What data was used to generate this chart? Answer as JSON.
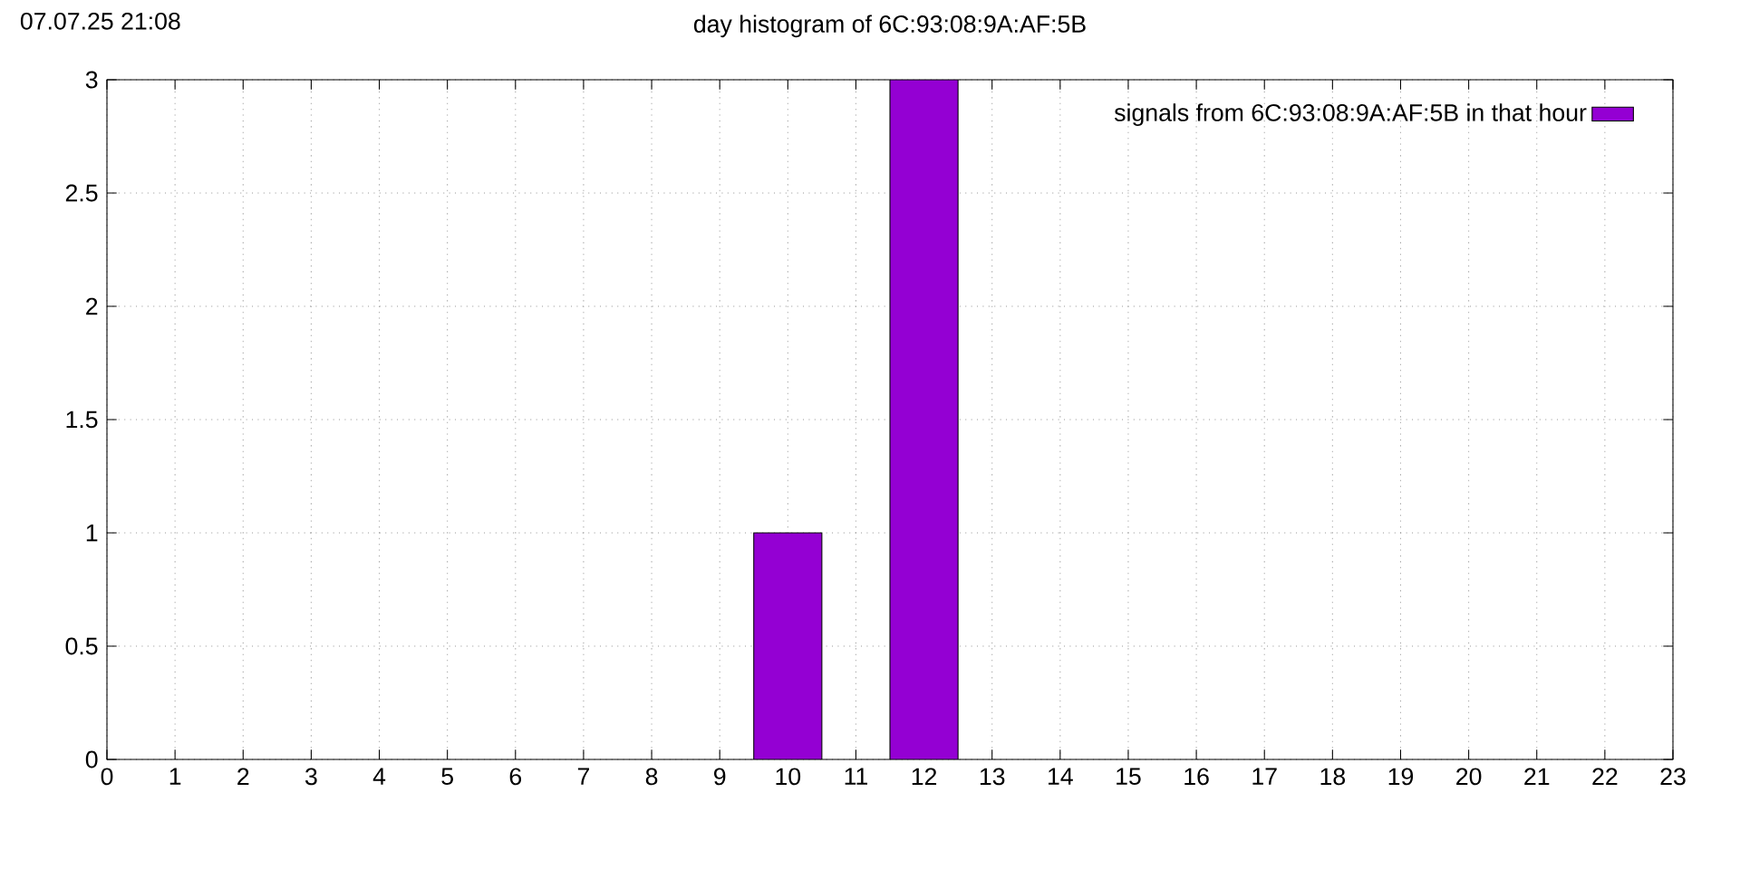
{
  "chart_data": {
    "type": "bar",
    "title": "day histogram of 6C:93:08:9A:AF:5B",
    "annotations": [
      "07.07.25 21:08"
    ],
    "x": [
      10,
      12
    ],
    "series": [
      {
        "name": "signals from 6C:93:08:9A:AF:5B in that hour",
        "color": "#9400d3",
        "values": [
          1,
          3
        ]
      }
    ],
    "xlim": [
      0,
      23
    ],
    "xticks": [
      0,
      1,
      2,
      3,
      4,
      5,
      6,
      7,
      8,
      9,
      10,
      11,
      12,
      13,
      14,
      15,
      16,
      17,
      18,
      19,
      20,
      21,
      22,
      23
    ],
    "ylim": [
      0,
      3
    ],
    "yticks": [
      0,
      0.5,
      1,
      1.5,
      2,
      2.5,
      3
    ],
    "grid": true,
    "legend": "top right"
  }
}
